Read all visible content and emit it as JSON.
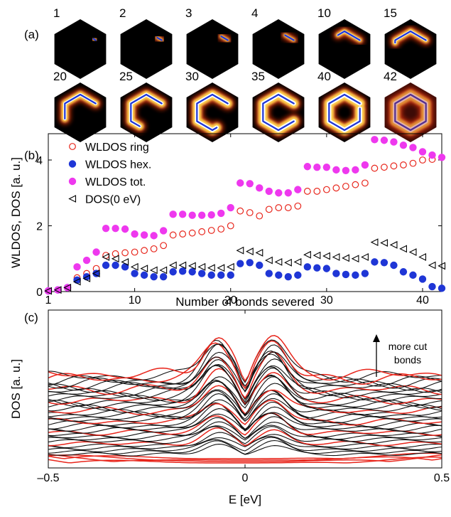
{
  "panel_labels": {
    "a": "(a)",
    "b": "(b)",
    "c": "(c)"
  },
  "hex_panels": {
    "labels": [
      "1",
      "2",
      "3",
      "4",
      "10",
      "15",
      "20",
      "25",
      "30",
      "35",
      "40",
      "42"
    ],
    "bonds_cut": [
      1,
      2,
      3,
      4,
      10,
      15,
      20,
      25,
      30,
      35,
      40,
      42
    ],
    "colors": {
      "background": "#000000",
      "glow": "#ffffff",
      "bond": "#1f36d6"
    }
  },
  "chart_data": [
    {
      "type": "scatter",
      "xlabel": "Number of bonds severed",
      "ylabel": "WLDOS, DOS [a. u.]",
      "xlim": [
        1,
        42
      ],
      "ylim": [
        0,
        4.8
      ],
      "xticks": [
        1,
        10,
        20,
        30,
        40
      ],
      "yticks": [
        0,
        2,
        4
      ],
      "legend_position": "top-left",
      "series": [
        {
          "name": "WLDOS ring",
          "marker": "open-circle",
          "color": "#e8261c",
          "x": [
            1,
            2,
            3,
            4,
            5,
            6,
            7,
            8,
            9,
            10,
            11,
            12,
            13,
            14,
            15,
            16,
            17,
            18,
            19,
            20,
            21,
            22,
            23,
            24,
            25,
            26,
            27,
            28,
            29,
            30,
            31,
            32,
            33,
            34,
            35,
            36,
            37,
            38,
            39,
            40,
            41,
            42
          ],
          "y": [
            0.02,
            0.05,
            0.12,
            0.42,
            0.55,
            0.7,
            1.1,
            1.15,
            1.18,
            1.2,
            1.25,
            1.3,
            1.4,
            1.72,
            1.75,
            1.78,
            1.82,
            1.86,
            1.9,
            2.0,
            2.45,
            2.4,
            2.3,
            2.5,
            2.55,
            2.55,
            2.6,
            3.05,
            3.05,
            3.1,
            3.15,
            3.2,
            3.25,
            3.3,
            3.75,
            3.78,
            3.82,
            3.85,
            3.9,
            4.0,
            4.02,
            4.08
          ]
        },
        {
          "name": "WLDOS hex.",
          "marker": "filled-circle",
          "color": "#1f36d6",
          "x": [
            1,
            2,
            3,
            4,
            5,
            6,
            7,
            8,
            9,
            10,
            11,
            12,
            13,
            14,
            15,
            16,
            17,
            18,
            19,
            20,
            21,
            22,
            23,
            24,
            25,
            26,
            27,
            28,
            29,
            30,
            31,
            32,
            33,
            34,
            35,
            36,
            37,
            38,
            39,
            40,
            41,
            42
          ],
          "y": [
            0.02,
            0.05,
            0.12,
            0.35,
            0.45,
            0.55,
            0.8,
            0.8,
            0.75,
            0.55,
            0.5,
            0.45,
            0.45,
            0.6,
            0.62,
            0.6,
            0.55,
            0.5,
            0.5,
            0.5,
            0.85,
            0.88,
            0.8,
            0.55,
            0.5,
            0.45,
            0.5,
            0.75,
            0.72,
            0.7,
            0.55,
            0.52,
            0.5,
            0.55,
            0.9,
            0.88,
            0.8,
            0.6,
            0.5,
            0.38,
            0.15,
            0.1
          ]
        },
        {
          "name": "WLDOS tot.",
          "marker": "filled-circle",
          "color": "#ee38ee",
          "x": [
            1,
            2,
            3,
            4,
            5,
            6,
            7,
            8,
            9,
            10,
            11,
            12,
            13,
            14,
            15,
            16,
            17,
            18,
            19,
            20,
            21,
            22,
            23,
            24,
            25,
            26,
            27,
            28,
            29,
            30,
            31,
            32,
            33,
            34,
            35,
            36,
            37,
            38,
            39,
            40,
            41,
            42
          ],
          "y": [
            0.02,
            0.05,
            0.12,
            0.75,
            0.95,
            1.2,
            1.92,
            1.92,
            1.9,
            1.75,
            1.72,
            1.7,
            1.85,
            2.35,
            2.35,
            2.32,
            2.32,
            2.33,
            2.38,
            2.55,
            3.3,
            3.28,
            3.15,
            3.05,
            3.0,
            3.0,
            3.1,
            3.8,
            3.78,
            3.78,
            3.7,
            3.68,
            3.7,
            3.85,
            4.62,
            4.6,
            4.55,
            4.45,
            4.38,
            4.25,
            4.15,
            4.08
          ]
        },
        {
          "name": "DOS(0 eV)",
          "marker": "open-triangle-left",
          "color": "#000000",
          "x": [
            1,
            2,
            3,
            4,
            5,
            6,
            7,
            8,
            9,
            10,
            11,
            12,
            13,
            14,
            15,
            16,
            17,
            18,
            19,
            20,
            21,
            22,
            23,
            24,
            25,
            26,
            27,
            28,
            29,
            30,
            31,
            32,
            33,
            34,
            35,
            36,
            37,
            38,
            39,
            40,
            41,
            42
          ],
          "y": [
            0.02,
            0.05,
            0.12,
            0.3,
            0.4,
            0.55,
            1.05,
            1.0,
            0.9,
            0.75,
            0.7,
            0.65,
            0.65,
            0.8,
            0.8,
            0.78,
            0.75,
            0.72,
            0.72,
            0.75,
            1.25,
            1.22,
            1.18,
            0.95,
            0.9,
            0.88,
            0.9,
            1.12,
            1.1,
            1.08,
            1.05,
            1.02,
            1.0,
            1.05,
            1.5,
            1.48,
            1.42,
            1.3,
            1.2,
            1.05,
            0.8,
            0.78
          ]
        }
      ]
    },
    {
      "type": "line",
      "xlabel": "E [eV]",
      "ylabel": "DOS [a. u.]",
      "xlim": [
        -0.5,
        0.5
      ],
      "xticks": [
        -0.5,
        0,
        0.5
      ],
      "xtick_labels": [
        "–0.5",
        "0",
        "0.5"
      ],
      "annotation": [
        "more cut",
        "bonds"
      ],
      "n_curves": 42,
      "highlighted_curves": [
        1,
        2,
        3,
        4,
        10,
        15,
        20,
        25,
        30,
        35,
        40,
        42
      ],
      "colors": {
        "regular": "#111111",
        "highlighted": "#e8261c"
      }
    }
  ]
}
